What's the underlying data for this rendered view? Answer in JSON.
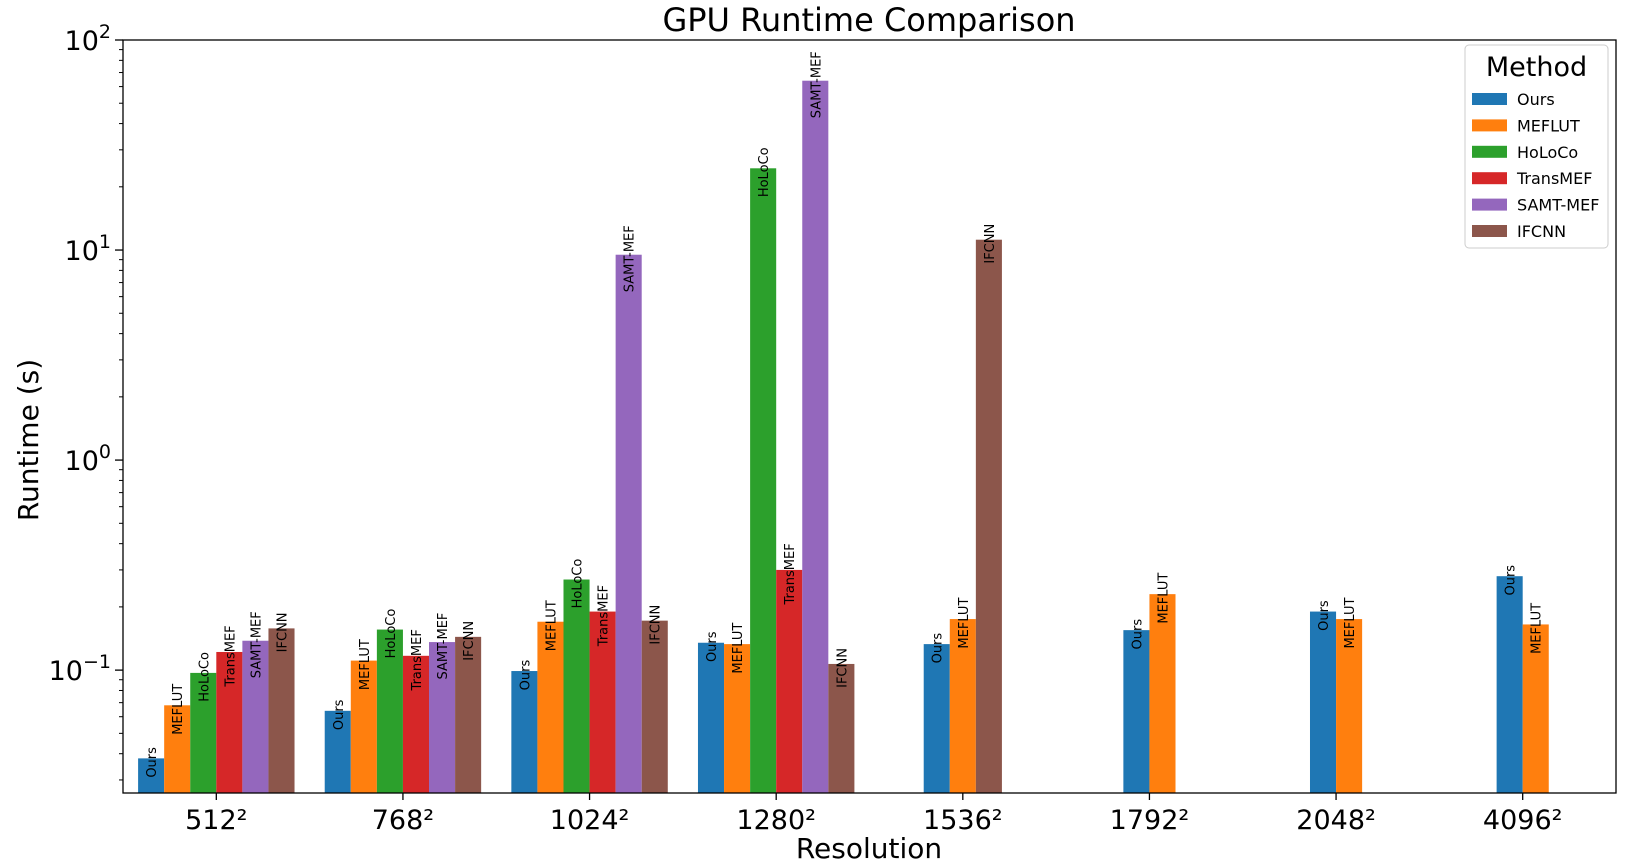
{
  "chart_data": {
    "type": "bar",
    "title": "GPU Runtime Comparison",
    "xlabel": "Resolution",
    "ylabel": "Runtime (s)",
    "yscale": "log",
    "ylim": [
      0.026,
      100
    ],
    "yticks": [
      {
        "value": 0.1,
        "label": "10",
        "exp": "−1"
      },
      {
        "value": 1,
        "label": "10",
        "exp": "0"
      },
      {
        "value": 10,
        "label": "10",
        "exp": "1"
      },
      {
        "value": 100,
        "label": "10",
        "exp": "2"
      }
    ],
    "categories": [
      "512²",
      "768²",
      "1024²",
      "1280²",
      "1536²",
      "1792²",
      "2048²",
      "4096²"
    ],
    "grid": false,
    "legend": {
      "title": "Method",
      "position": "top-right"
    },
    "series": [
      {
        "name": "Ours",
        "color": "#1f77b4",
        "values": [
          0.038,
          0.064,
          0.099,
          0.135,
          0.133,
          0.155,
          0.19,
          0.28
        ]
      },
      {
        "name": "MEFLUT",
        "color": "#ff7f0e",
        "values": [
          0.068,
          0.111,
          0.17,
          0.133,
          0.175,
          0.23,
          0.175,
          0.165
        ]
      },
      {
        "name": "HoLoCo",
        "color": "#2ca02c",
        "values": [
          0.097,
          0.156,
          0.27,
          24.5,
          null,
          null,
          null,
          null
        ]
      },
      {
        "name": "TransMEF",
        "color": "#d62728",
        "values": [
          0.122,
          0.117,
          0.19,
          0.3,
          null,
          null,
          null,
          null
        ]
      },
      {
        "name": "SAMT-MEF",
        "color": "#9467bd",
        "values": [
          0.138,
          0.136,
          9.5,
          64,
          null,
          null,
          null,
          null
        ]
      },
      {
        "name": "IFCNN",
        "color": "#8c564b",
        "values": [
          0.158,
          0.144,
          0.172,
          0.107,
          11.2,
          null,
          null,
          null
        ]
      }
    ]
  }
}
